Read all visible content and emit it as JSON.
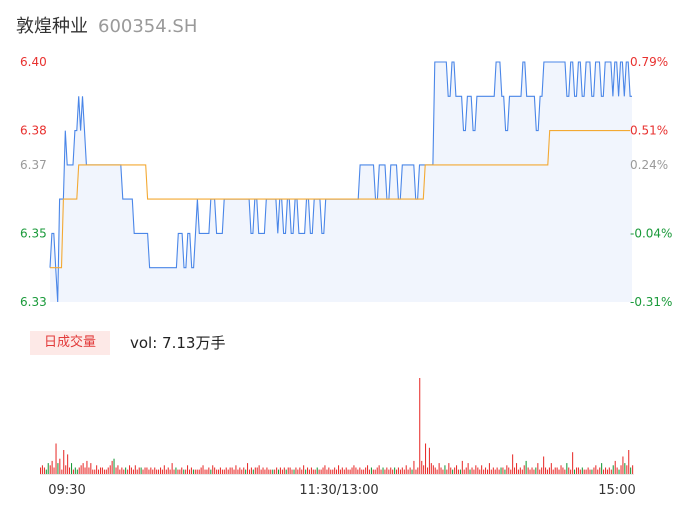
{
  "header": {
    "name": "敦煌种业",
    "code": "600354.SH"
  },
  "colors": {
    "up": "#e8312f",
    "down": "#1a9a3a",
    "neutral": "#9a9a9a",
    "price": "#4a86e8",
    "avg": "#f3a933",
    "vol_tab_bg": "#fde9e7"
  },
  "volume_panel": {
    "tab_label": "日成交量",
    "vol_text": "vol: 7.13万手"
  },
  "chart_data": [
    {
      "type": "line",
      "y_ticks": [
        {
          "value": 6.4,
          "label": "6.40",
          "pct": "0.79%",
          "tone": "up"
        },
        {
          "value": 6.38,
          "label": "6.38",
          "pct": "0.51%",
          "tone": "up"
        },
        {
          "value": 6.37,
          "label": "6.37",
          "pct": "0.24%",
          "tone": "neutral"
        },
        {
          "value": 6.35,
          "label": "6.35",
          "pct": "-0.04%",
          "tone": "down"
        },
        {
          "value": 6.33,
          "label": "6.33",
          "pct": "-0.31%",
          "tone": "down"
        }
      ],
      "ylim": [
        6.33,
        6.4
      ],
      "x_ticks": [
        "09:30",
        "11:30/13:00",
        "15:00"
      ],
      "series": [
        {
          "role": "price",
          "values": [
            6.34,
            6.35,
            6.35,
            6.34,
            6.33,
            6.36,
            6.36,
            6.36,
            6.38,
            6.37,
            6.37,
            6.37,
            6.37,
            6.38,
            6.38,
            6.39,
            6.38,
            6.39,
            6.38,
            6.37,
            6.37,
            6.37,
            6.37,
            6.37,
            6.37,
            6.37,
            6.37,
            6.37,
            6.37,
            6.37,
            6.37,
            6.37,
            6.37,
            6.37,
            6.37,
            6.37,
            6.37,
            6.37,
            6.36,
            6.36,
            6.36,
            6.36,
            6.36,
            6.36,
            6.35,
            6.35,
            6.35,
            6.35,
            6.35,
            6.35,
            6.35,
            6.35,
            6.34,
            6.34,
            6.34,
            6.34,
            6.34,
            6.34,
            6.34,
            6.34,
            6.34,
            6.34,
            6.34,
            6.34,
            6.34,
            6.34,
            6.34,
            6.35,
            6.35,
            6.35,
            6.34,
            6.34,
            6.35,
            6.35,
            6.34,
            6.34,
            6.35,
            6.36,
            6.35,
            6.35,
            6.35,
            6.35,
            6.35,
            6.35,
            6.36,
            6.36,
            6.36,
            6.35,
            6.35,
            6.35,
            6.35,
            6.36,
            6.36,
            6.36,
            6.36,
            6.36,
            6.36,
            6.36,
            6.36,
            6.36,
            6.36,
            6.36,
            6.36,
            6.36,
            6.36,
            6.35,
            6.35,
            6.36,
            6.36,
            6.35,
            6.35,
            6.35,
            6.35,
            6.36,
            6.36,
            6.36,
            6.36,
            6.36,
            6.36,
            6.35,
            6.36,
            6.36,
            6.35,
            6.35,
            6.36,
            6.36,
            6.35,
            6.35,
            6.36,
            6.36,
            6.35,
            6.35,
            6.35,
            6.35,
            6.36,
            6.36,
            6.35,
            6.35,
            6.36,
            6.36,
            6.36,
            6.36,
            6.35,
            6.35,
            6.36,
            6.36,
            6.36,
            6.36,
            6.36,
            6.36,
            6.36,
            6.36,
            6.36,
            6.36,
            6.36,
            6.36,
            6.36,
            6.36,
            6.36,
            6.36,
            6.36,
            6.36,
            6.37,
            6.37,
            6.37,
            6.37,
            6.37,
            6.37,
            6.37,
            6.37,
            6.36,
            6.36,
            6.37,
            6.37,
            6.37,
            6.37,
            6.36,
            6.36,
            6.37,
            6.37,
            6.37,
            6.37,
            6.36,
            6.36,
            6.37,
            6.37,
            6.37,
            6.37,
            6.37,
            6.37,
            6.37,
            6.36,
            6.36,
            6.37,
            6.37,
            6.37,
            6.37,
            6.37,
            6.37,
            6.37,
            6.37,
            6.4,
            6.4,
            6.4,
            6.4,
            6.4,
            6.4,
            6.4,
            6.39,
            6.39,
            6.4,
            6.4,
            6.39,
            6.39,
            6.39,
            6.39,
            6.38,
            6.38,
            6.39,
            6.39,
            6.39,
            6.38,
            6.38,
            6.39,
            6.39,
            6.39,
            6.39,
            6.39,
            6.39,
            6.39,
            6.39,
            6.39,
            6.39,
            6.4,
            6.4,
            6.4,
            6.39,
            6.39,
            6.38,
            6.38,
            6.39,
            6.39,
            6.39,
            6.39,
            6.39,
            6.39,
            6.39,
            6.4,
            6.4,
            6.39,
            6.39,
            6.39,
            6.39,
            6.39,
            6.38,
            6.38,
            6.39,
            6.39,
            6.4,
            6.4,
            6.4,
            6.4,
            6.4,
            6.4,
            6.4,
            6.4,
            6.4,
            6.4,
            6.4,
            6.4,
            6.39,
            6.39,
            6.4,
            6.4,
            6.39,
            6.39,
            6.4,
            6.4,
            6.39,
            6.39,
            6.4,
            6.4,
            6.4,
            6.39,
            6.39,
            6.4,
            6.4,
            6.4,
            6.39,
            6.39,
            6.4,
            6.4,
            6.4,
            6.4,
            6.39,
            6.4,
            6.4,
            6.39,
            6.4,
            6.4,
            6.39,
            6.4,
            6.4,
            6.39,
            6.39
          ]
        },
        {
          "role": "avg",
          "values": [
            6.34,
            6.34,
            6.34,
            6.34,
            6.34,
            6.34,
            6.34,
            6.36,
            6.36,
            6.36,
            6.36,
            6.36,
            6.36,
            6.36,
            6.36,
            6.37,
            6.37,
            6.37,
            6.37,
            6.37,
            6.37,
            6.37,
            6.37,
            6.37,
            6.37,
            6.37,
            6.37,
            6.37,
            6.37,
            6.37,
            6.37,
            6.37,
            6.37,
            6.37,
            6.37,
            6.37,
            6.37,
            6.37,
            6.37,
            6.37,
            6.37,
            6.37,
            6.37,
            6.37,
            6.37,
            6.37,
            6.37,
            6.37,
            6.37,
            6.37,
            6.37,
            6.36,
            6.36,
            6.36,
            6.36,
            6.36,
            6.36,
            6.36,
            6.36,
            6.36,
            6.36,
            6.36,
            6.36,
            6.36,
            6.36,
            6.36,
            6.36,
            6.36,
            6.36,
            6.36,
            6.36,
            6.36,
            6.36,
            6.36,
            6.36,
            6.36,
            6.36,
            6.36,
            6.36,
            6.36,
            6.36,
            6.36,
            6.36,
            6.36,
            6.36,
            6.36,
            6.36,
            6.36,
            6.36,
            6.36,
            6.36,
            6.36,
            6.36,
            6.36,
            6.36,
            6.36,
            6.36,
            6.36,
            6.36,
            6.36,
            6.36,
            6.36,
            6.36,
            6.36,
            6.36,
            6.36,
            6.36,
            6.36,
            6.36,
            6.36,
            6.36,
            6.36,
            6.36,
            6.36,
            6.36,
            6.36,
            6.36,
            6.36,
            6.36,
            6.36,
            6.36,
            6.36,
            6.36,
            6.36,
            6.36,
            6.36,
            6.36,
            6.36,
            6.36,
            6.36,
            6.36,
            6.36,
            6.36,
            6.36,
            6.36,
            6.36,
            6.36,
            6.36,
            6.36,
            6.36,
            6.36,
            6.36,
            6.36,
            6.36,
            6.36,
            6.36,
            6.36,
            6.36,
            6.36,
            6.36,
            6.36,
            6.36,
            6.36,
            6.36,
            6.36,
            6.36,
            6.36,
            6.36,
            6.36,
            6.36,
            6.36,
            6.36,
            6.36,
            6.36,
            6.36,
            6.36,
            6.36,
            6.36,
            6.36,
            6.36,
            6.36,
            6.36,
            6.36,
            6.36,
            6.36,
            6.36,
            6.36,
            6.36,
            6.36,
            6.36,
            6.36,
            6.36,
            6.36,
            6.36,
            6.36,
            6.36,
            6.36,
            6.36,
            6.36,
            6.36,
            6.36,
            6.36,
            6.36,
            6.36,
            6.36,
            6.36,
            6.37,
            6.37,
            6.37,
            6.37,
            6.37,
            6.37,
            6.37,
            6.37,
            6.37,
            6.37,
            6.37,
            6.37,
            6.37,
            6.37,
            6.37,
            6.37,
            6.37,
            6.37,
            6.37,
            6.37,
            6.37,
            6.37,
            6.37,
            6.37,
            6.37,
            6.37,
            6.37,
            6.37,
            6.37,
            6.37,
            6.37,
            6.37,
            6.37,
            6.37,
            6.37,
            6.37,
            6.37,
            6.37,
            6.37,
            6.37,
            6.37,
            6.37,
            6.37,
            6.37,
            6.37,
            6.37,
            6.37,
            6.37,
            6.37,
            6.37,
            6.37,
            6.37,
            6.37,
            6.37,
            6.37,
            6.37,
            6.37,
            6.37,
            6.37,
            6.37,
            6.37,
            6.37,
            6.37,
            6.37,
            6.37,
            6.38,
            6.38,
            6.38,
            6.38,
            6.38,
            6.38,
            6.38,
            6.38,
            6.38,
            6.38,
            6.38,
            6.38,
            6.38,
            6.38,
            6.38,
            6.38,
            6.38,
            6.38,
            6.38,
            6.38,
            6.38,
            6.38,
            6.38,
            6.38,
            6.38,
            6.38,
            6.38,
            6.38,
            6.38,
            6.38,
            6.38,
            6.38,
            6.38,
            6.38,
            6.38,
            6.38,
            6.38,
            6.38,
            6.38,
            6.38,
            6.38,
            6.38,
            6.38
          ]
        }
      ]
    },
    {
      "type": "bar",
      "x_ticks": [
        "09:30",
        "11:30/13:00",
        "15:00"
      ],
      "values": [
        3,
        4,
        3,
        2,
        5,
        4,
        6,
        3,
        14,
        5,
        7,
        2,
        11,
        4,
        9,
        3,
        5,
        2,
        3,
        2,
        3,
        4,
        5,
        3,
        6,
        3,
        5,
        2,
        2,
        4,
        2,
        3,
        3,
        2,
        2,
        3,
        4,
        6,
        7,
        3,
        4,
        2,
        3,
        2,
        3,
        2,
        4,
        3,
        2,
        4,
        2,
        3,
        3,
        2,
        3,
        3,
        2,
        3,
        2,
        3,
        2,
        2,
        3,
        2,
        4,
        2,
        3,
        2,
        5,
        2,
        3,
        2,
        2,
        3,
        2,
        2,
        4,
        2,
        3,
        2,
        2,
        2,
        2,
        3,
        4,
        2,
        2,
        3,
        2,
        4,
        3,
        2,
        2,
        3,
        2,
        2,
        3,
        2,
        3,
        3,
        2,
        4,
        2,
        3,
        2,
        3,
        2,
        5,
        2,
        3,
        2,
        3,
        3,
        4,
        2,
        3,
        2,
        3,
        2,
        2,
        2,
        2,
        3,
        2,
        3,
        2,
        3,
        2,
        3,
        3,
        2,
        2,
        3,
        2,
        3,
        2,
        4,
        2,
        3,
        2,
        3,
        2,
        2,
        3,
        2,
        2,
        3,
        4,
        2,
        3,
        2,
        2,
        3,
        2,
        4,
        2,
        3,
        2,
        3,
        2,
        2,
        3,
        4,
        3,
        2,
        3,
        2,
        2,
        3,
        4,
        2,
        3,
        2,
        2,
        3,
        4,
        2,
        3,
        2,
        3,
        2,
        3,
        2,
        3,
        2,
        3,
        2,
        3,
        2,
        4,
        2,
        3,
        2,
        6,
        2,
        3,
        44,
        6,
        4,
        14,
        3,
        12,
        5,
        4,
        3,
        2,
        5,
        3,
        2,
        4,
        2,
        5,
        3,
        2,
        3,
        4,
        2,
        2,
        6,
        2,
        3,
        5,
        2,
        3,
        2,
        4,
        3,
        2,
        4,
        2,
        3,
        2,
        5,
        2,
        3,
        2,
        3,
        2,
        3,
        3,
        2,
        4,
        3,
        2,
        9,
        3,
        5,
        2,
        3,
        2,
        4,
        6,
        3,
        2,
        3,
        2,
        3,
        5,
        2,
        3,
        8,
        3,
        2,
        3,
        5,
        2,
        3,
        3,
        2,
        4,
        3,
        2,
        5,
        3,
        2,
        10,
        2,
        3,
        3,
        2,
        3,
        2,
        2,
        3,
        2,
        2,
        3,
        4,
        2,
        3,
        5,
        2,
        3,
        2,
        3,
        2,
        4,
        6,
        3,
        2,
        4,
        8,
        5,
        4,
        11,
        3,
        4
      ],
      "ylim": [
        0,
        44
      ]
    }
  ]
}
